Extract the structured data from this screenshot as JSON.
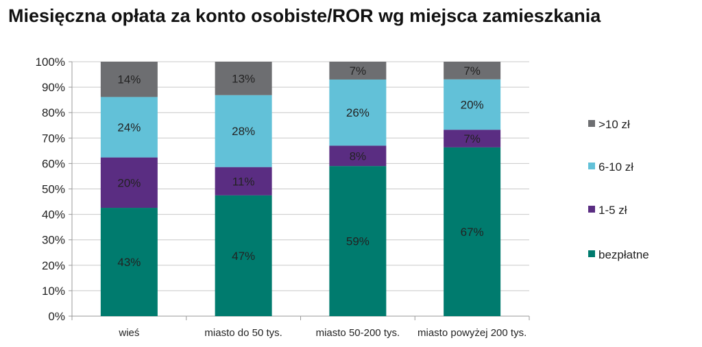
{
  "chart_data": {
    "type": "bar",
    "stacked": true,
    "title": "Miesięczna opłata za konto osobiste/ROR wg miejsca zamieszkania",
    "xlabel": "",
    "ylabel": "",
    "ylim": [
      0,
      100
    ],
    "yticks": [
      "0%",
      "10%",
      "20%",
      "30%",
      "40%",
      "50%",
      "60%",
      "70%",
      "80%",
      "90%",
      "100%"
    ],
    "grid": true,
    "legend_position": "right",
    "categories": [
      "wieś",
      "miasto do 50 tys.",
      "miasto 50-200 tys.",
      "miasto powyżej 200 tys."
    ],
    "series": [
      {
        "name": "bezpłatne",
        "color": "#007b6e",
        "values": [
          43,
          47,
          59,
          67
        ],
        "labels": [
          "43%",
          "47%",
          "59%",
          "67%"
        ]
      },
      {
        "name": "1-5 zł",
        "color": "#5a2d82",
        "values": [
          20,
          11,
          8,
          7
        ],
        "labels": [
          "20%",
          "11%",
          "8%",
          "7%"
        ]
      },
      {
        "name": "6-10 zł",
        "color": "#62c1d8",
        "values": [
          24,
          28,
          26,
          20
        ],
        "labels": [
          "24%",
          "28%",
          "26%",
          "20%"
        ]
      },
      {
        "name": ">10 zł",
        "color": "#6d6e71",
        "values": [
          14,
          13,
          7,
          7
        ],
        "labels": [
          "14%",
          "13%",
          "7%",
          "7%"
        ]
      }
    ]
  }
}
